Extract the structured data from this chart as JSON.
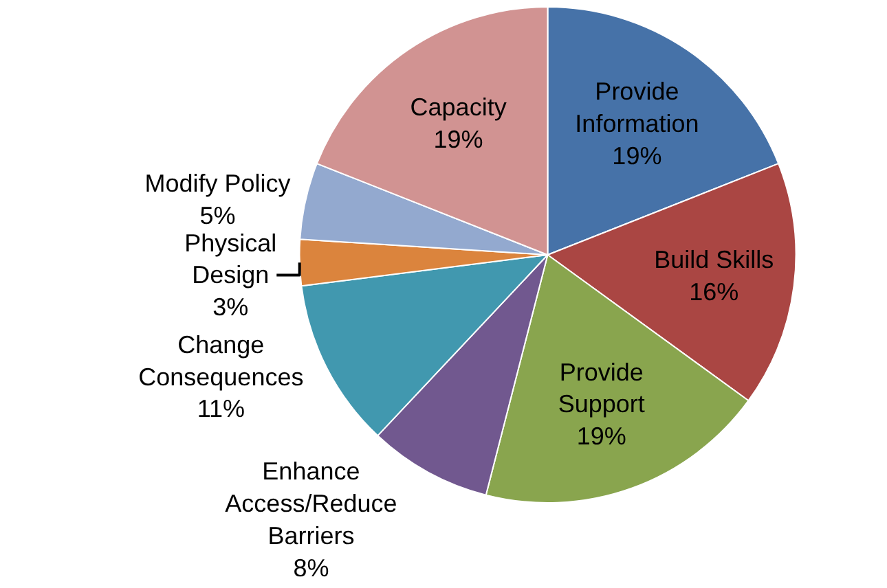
{
  "chart_data": {
    "type": "pie",
    "categories": [
      "Provide Information",
      "Build Skills",
      "Provide Support",
      "Enhance Access/Reduce Barriers",
      "Change Consequences",
      "Physical Design",
      "Modify Policy",
      "Capacity"
    ],
    "values": [
      19,
      16,
      19,
      8,
      11,
      3,
      5,
      19
    ],
    "value_labels": [
      "19%",
      "16%",
      "19%",
      "8%",
      "11%",
      "3%",
      "5%",
      "19%"
    ],
    "colors": [
      "#4672a8",
      "#aa4643",
      "#89a54e",
      "#71588f",
      "#4198af",
      "#db843d",
      "#93a9cf",
      "#d19392"
    ],
    "legend": false
  }
}
